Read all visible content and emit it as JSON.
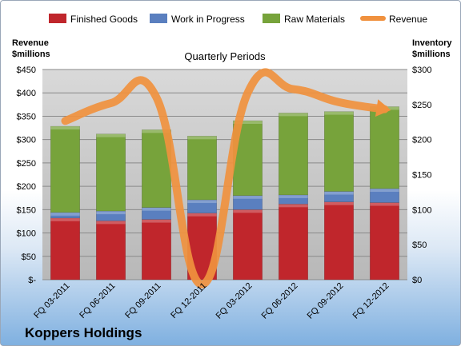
{
  "company": "Koppers Holdings",
  "chart_data": {
    "type": "bar",
    "subtype": "stacked bar with line overlay",
    "title": "Quarterly Periods",
    "categories": [
      "FQ 03-2011",
      "FQ 06-2011",
      "FQ 09-2011",
      "FQ 12-2011",
      "FQ 03-2012",
      "FQ 06-2012",
      "FQ 09-2012",
      "FQ 12-2012"
    ],
    "left_axis": {
      "label_lines": [
        "Revenue",
        "$millions"
      ],
      "ylim": [
        0,
        450
      ],
      "ticks": [
        "$-",
        "$50",
        "$100",
        "$150",
        "$200",
        "$250",
        "$300",
        "$350",
        "$400",
        "$450"
      ]
    },
    "right_axis": {
      "label_lines": [
        "Inventory",
        "$millions"
      ],
      "ylim": [
        0,
        300
      ],
      "ticks": [
        "$0",
        "$50",
        "$100",
        "$150",
        "$200",
        "$250",
        "$300"
      ]
    },
    "series": [
      {
        "name": "Finished Goods",
        "axis": "right",
        "color": "#c0262c",
        "values": [
          88,
          84,
          86,
          95,
          100,
          108,
          111,
          110
        ]
      },
      {
        "name": "Work in Progress",
        "axis": "right",
        "color": "#5a7fbf",
        "values": [
          8,
          14,
          17,
          19,
          20,
          13,
          15,
          20
        ]
      },
      {
        "name": "Raw Materials",
        "axis": "right",
        "color": "#77a33b",
        "values": [
          123,
          110,
          111,
          91,
          107,
          117,
          114,
          117
        ]
      },
      {
        "name": "Revenue",
        "axis": "left",
        "type": "line",
        "color": "#f0913e",
        "values": [
          340,
          378,
          390,
          -10,
          400,
          408,
          380,
          365
        ]
      }
    ],
    "grid": true,
    "legend_position": "top"
  }
}
